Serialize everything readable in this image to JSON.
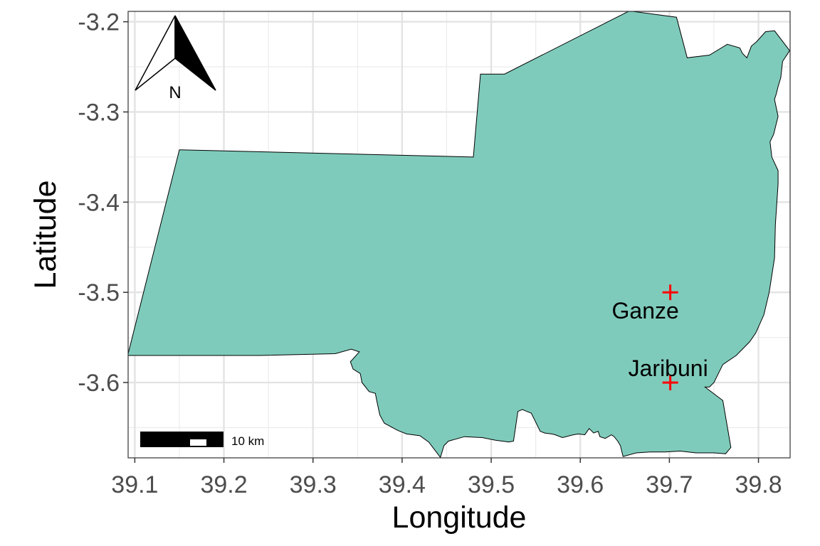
{
  "map": {
    "xlabel": "Longitude",
    "ylabel": "Latitude",
    "x_range": [
      39.0925,
      39.8355
    ],
    "y_range": [
      -3.6835,
      -3.1885
    ],
    "x_ticks": [
      "39.1",
      "39.2",
      "39.3",
      "39.4",
      "39.5",
      "39.6",
      "39.7",
      "39.8"
    ],
    "y_ticks": [
      "-3.2",
      "-3.3",
      "-3.4",
      "-3.5",
      "-3.6"
    ],
    "grid": true,
    "region_fill": "#7fcbbb",
    "region_outline": [
      [
        39.092,
        -3.57
      ],
      [
        39.15,
        -3.342
      ],
      [
        39.48,
        -3.35
      ],
      [
        39.488,
        -3.258
      ],
      [
        39.515,
        -3.258
      ],
      [
        39.655,
        -3.188
      ],
      [
        39.708,
        -3.195
      ],
      [
        39.72,
        -3.24
      ],
      [
        39.745,
        -3.237
      ],
      [
        39.765,
        -3.225
      ],
      [
        39.779,
        -3.229
      ],
      [
        39.782,
        -3.235
      ],
      [
        39.787,
        -3.24
      ],
      [
        39.792,
        -3.227
      ],
      [
        39.798,
        -3.222
      ],
      [
        39.808,
        -3.211
      ],
      [
        39.818,
        -3.21
      ],
      [
        39.835,
        -3.232
      ],
      [
        39.827,
        -3.244
      ],
      [
        39.825,
        -3.262
      ],
      [
        39.822,
        -3.272
      ],
      [
        39.82,
        -3.28
      ],
      [
        39.818,
        -3.286
      ],
      [
        39.822,
        -3.305
      ],
      [
        39.817,
        -3.325
      ],
      [
        39.813,
        -3.333
      ],
      [
        39.815,
        -3.35
      ],
      [
        39.822,
        -3.365
      ],
      [
        39.822,
        -3.38
      ],
      [
        39.819,
        -3.425
      ],
      [
        39.818,
        -3.462
      ],
      [
        39.812,
        -3.5
      ],
      [
        39.806,
        -3.525
      ],
      [
        39.797,
        -3.545
      ],
      [
        39.79,
        -3.555
      ],
      [
        39.775,
        -3.57
      ],
      [
        39.76,
        -3.58
      ],
      [
        39.75,
        -3.6
      ],
      [
        39.745,
        -3.605
      ],
      [
        39.74,
        -3.605
      ],
      [
        39.76,
        -3.62
      ],
      [
        39.769,
        -3.672
      ],
      [
        39.763,
        -3.679
      ],
      [
        39.75,
        -3.678
      ],
      [
        39.73,
        -3.678
      ],
      [
        39.712,
        -3.676
      ],
      [
        39.695,
        -3.677
      ],
      [
        39.678,
        -3.677
      ],
      [
        39.663,
        -3.678
      ],
      [
        39.648,
        -3.682
      ],
      [
        39.645,
        -3.67
      ],
      [
        39.642,
        -3.665
      ],
      [
        39.638,
        -3.66
      ],
      [
        39.635,
        -3.658
      ],
      [
        39.628,
        -3.662
      ],
      [
        39.622,
        -3.66
      ],
      [
        39.62,
        -3.654
      ],
      [
        39.615,
        -3.656
      ],
      [
        39.61,
        -3.651
      ],
      [
        39.605,
        -3.658
      ],
      [
        39.598,
        -3.657
      ],
      [
        39.592,
        -3.658
      ],
      [
        39.58,
        -3.661
      ],
      [
        39.572,
        -3.658
      ],
      [
        39.568,
        -3.657
      ],
      [
        39.56,
        -3.656
      ],
      [
        39.555,
        -3.654
      ],
      [
        39.549,
        -3.642
      ],
      [
        39.545,
        -3.634
      ],
      [
        39.54,
        -3.632
      ],
      [
        39.535,
        -3.63
      ],
      [
        39.53,
        -3.632
      ],
      [
        39.525,
        -3.665
      ],
      [
        39.52,
        -3.666
      ],
      [
        39.505,
        -3.664
      ],
      [
        39.49,
        -3.661
      ],
      [
        39.47,
        -3.66
      ],
      [
        39.452,
        -3.665
      ],
      [
        39.447,
        -3.67
      ],
      [
        39.443,
        -3.683
      ],
      [
        39.436,
        -3.674
      ],
      [
        39.43,
        -3.666
      ],
      [
        39.42,
        -3.659
      ],
      [
        39.405,
        -3.657
      ],
      [
        39.395,
        -3.653
      ],
      [
        39.38,
        -3.645
      ],
      [
        39.375,
        -3.636
      ],
      [
        39.372,
        -3.622
      ],
      [
        39.37,
        -3.612
      ],
      [
        39.363,
        -3.61
      ],
      [
        39.355,
        -3.6
      ],
      [
        39.353,
        -3.59
      ],
      [
        39.345,
        -3.585
      ],
      [
        39.342,
        -3.577
      ],
      [
        39.352,
        -3.566
      ],
      [
        39.343,
        -3.563
      ],
      [
        39.325,
        -3.568
      ],
      [
        39.24,
        -3.57
      ],
      [
        39.092,
        -3.57
      ]
    ],
    "points": [
      {
        "name": "Ganze",
        "lon": 39.701,
        "lat": -3.5,
        "marker_color": "#ff0000"
      },
      {
        "name": "Jaribuni",
        "lon": 39.701,
        "lat": -3.6,
        "marker_color": "#ff0000"
      }
    ],
    "north_arrow": {
      "letter": "N"
    },
    "scale_bar": {
      "label": "10 km",
      "segments": 5
    }
  }
}
